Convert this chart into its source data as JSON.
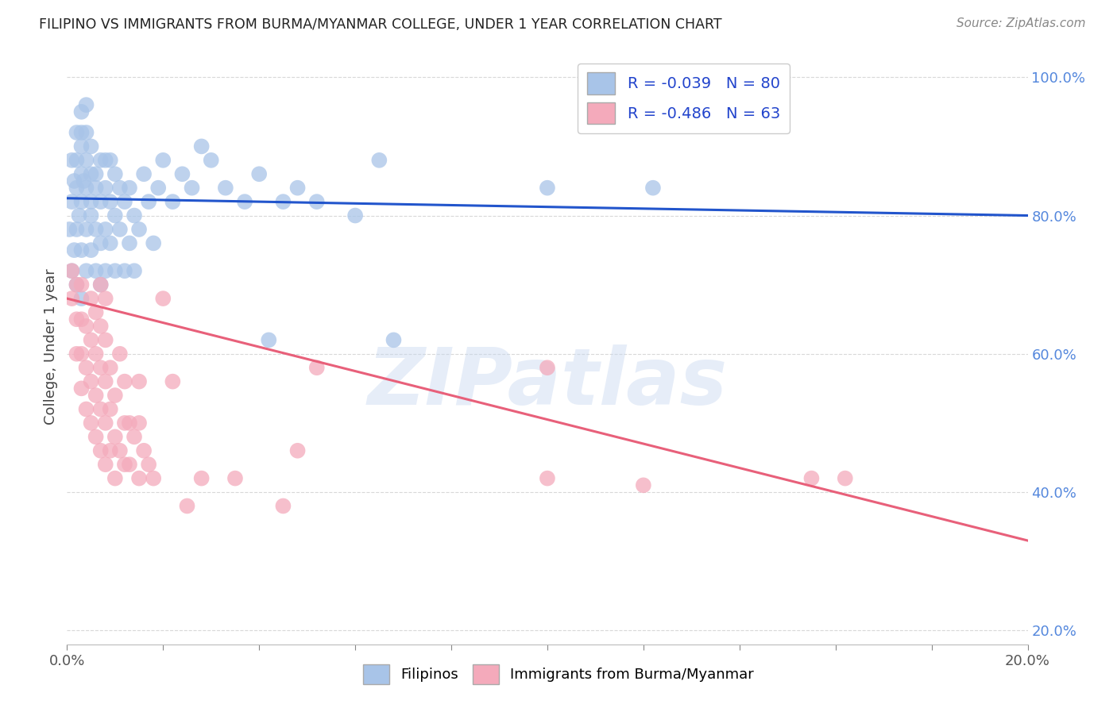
{
  "title": "FILIPINO VS IMMIGRANTS FROM BURMA/MYANMAR COLLEGE, UNDER 1 YEAR CORRELATION CHART",
  "source": "Source: ZipAtlas.com",
  "ylabel": "College, Under 1 year",
  "xlim": [
    0.0,
    0.2
  ],
  "ylim": [
    0.18,
    1.04
  ],
  "xticks": [
    0.0,
    0.02,
    0.04,
    0.06,
    0.08,
    0.1,
    0.12,
    0.14,
    0.16,
    0.18,
    0.2
  ],
  "yticks_right": [
    0.2,
    0.4,
    0.6,
    0.8,
    1.0
  ],
  "ytick_labels_right": [
    "20.0%",
    "40.0%",
    "60.0%",
    "80.0%",
    "100.0%"
  ],
  "blue_R": -0.039,
  "blue_N": 80,
  "pink_R": -0.486,
  "pink_N": 63,
  "blue_color": "#a8c4e8",
  "pink_color": "#f4aabb",
  "blue_line_color": "#2255cc",
  "pink_line_color": "#e8607a",
  "blue_line_y0": 0.825,
  "blue_line_y1": 0.8,
  "pink_line_y0": 0.68,
  "pink_line_y1": 0.33,
  "blue_scatter_x": [
    0.0005,
    0.001,
    0.001,
    0.001,
    0.0015,
    0.0015,
    0.002,
    0.002,
    0.002,
    0.002,
    0.002,
    0.0025,
    0.003,
    0.003,
    0.003,
    0.003,
    0.003,
    0.003,
    0.003,
    0.0035,
    0.004,
    0.004,
    0.004,
    0.004,
    0.004,
    0.004,
    0.005,
    0.005,
    0.005,
    0.005,
    0.005,
    0.006,
    0.006,
    0.006,
    0.006,
    0.007,
    0.007,
    0.007,
    0.007,
    0.008,
    0.008,
    0.008,
    0.008,
    0.009,
    0.009,
    0.009,
    0.01,
    0.01,
    0.01,
    0.011,
    0.011,
    0.012,
    0.012,
    0.013,
    0.013,
    0.014,
    0.014,
    0.015,
    0.016,
    0.017,
    0.018,
    0.019,
    0.02,
    0.022,
    0.024,
    0.026,
    0.028,
    0.03,
    0.033,
    0.037,
    0.04,
    0.042,
    0.045,
    0.048,
    0.052,
    0.06,
    0.065,
    0.068,
    0.1,
    0.122
  ],
  "blue_scatter_y": [
    0.78,
    0.72,
    0.82,
    0.88,
    0.75,
    0.85,
    0.7,
    0.78,
    0.84,
    0.88,
    0.92,
    0.8,
    0.68,
    0.75,
    0.82,
    0.86,
    0.9,
    0.92,
    0.95,
    0.85,
    0.72,
    0.78,
    0.84,
    0.88,
    0.92,
    0.96,
    0.75,
    0.8,
    0.86,
    0.9,
    0.82,
    0.72,
    0.78,
    0.84,
    0.86,
    0.7,
    0.76,
    0.82,
    0.88,
    0.72,
    0.78,
    0.84,
    0.88,
    0.76,
    0.82,
    0.88,
    0.72,
    0.8,
    0.86,
    0.78,
    0.84,
    0.72,
    0.82,
    0.76,
    0.84,
    0.72,
    0.8,
    0.78,
    0.86,
    0.82,
    0.76,
    0.84,
    0.88,
    0.82,
    0.86,
    0.84,
    0.9,
    0.88,
    0.84,
    0.82,
    0.86,
    0.62,
    0.82,
    0.84,
    0.82,
    0.8,
    0.88,
    0.62,
    0.84,
    0.84
  ],
  "pink_scatter_x": [
    0.001,
    0.001,
    0.002,
    0.002,
    0.002,
    0.003,
    0.003,
    0.003,
    0.003,
    0.004,
    0.004,
    0.004,
    0.005,
    0.005,
    0.005,
    0.005,
    0.006,
    0.006,
    0.006,
    0.006,
    0.007,
    0.007,
    0.007,
    0.007,
    0.007,
    0.008,
    0.008,
    0.008,
    0.008,
    0.008,
    0.009,
    0.009,
    0.009,
    0.01,
    0.01,
    0.01,
    0.011,
    0.011,
    0.012,
    0.012,
    0.012,
    0.013,
    0.013,
    0.014,
    0.015,
    0.015,
    0.015,
    0.016,
    0.017,
    0.018,
    0.02,
    0.022,
    0.025,
    0.028,
    0.035,
    0.045,
    0.048,
    0.052,
    0.1,
    0.12,
    0.155,
    0.162,
    0.1
  ],
  "pink_scatter_y": [
    0.68,
    0.72,
    0.6,
    0.65,
    0.7,
    0.55,
    0.6,
    0.65,
    0.7,
    0.52,
    0.58,
    0.64,
    0.5,
    0.56,
    0.62,
    0.68,
    0.48,
    0.54,
    0.6,
    0.66,
    0.46,
    0.52,
    0.58,
    0.64,
    0.7,
    0.44,
    0.5,
    0.56,
    0.62,
    0.68,
    0.46,
    0.52,
    0.58,
    0.42,
    0.48,
    0.54,
    0.46,
    0.6,
    0.44,
    0.5,
    0.56,
    0.44,
    0.5,
    0.48,
    0.42,
    0.5,
    0.56,
    0.46,
    0.44,
    0.42,
    0.68,
    0.56,
    0.38,
    0.42,
    0.42,
    0.38,
    0.46,
    0.58,
    0.42,
    0.41,
    0.42,
    0.42,
    0.58
  ],
  "watermark_text": "ZIPatlas",
  "background_color": "#ffffff",
  "grid_color": "#d8d8d8"
}
